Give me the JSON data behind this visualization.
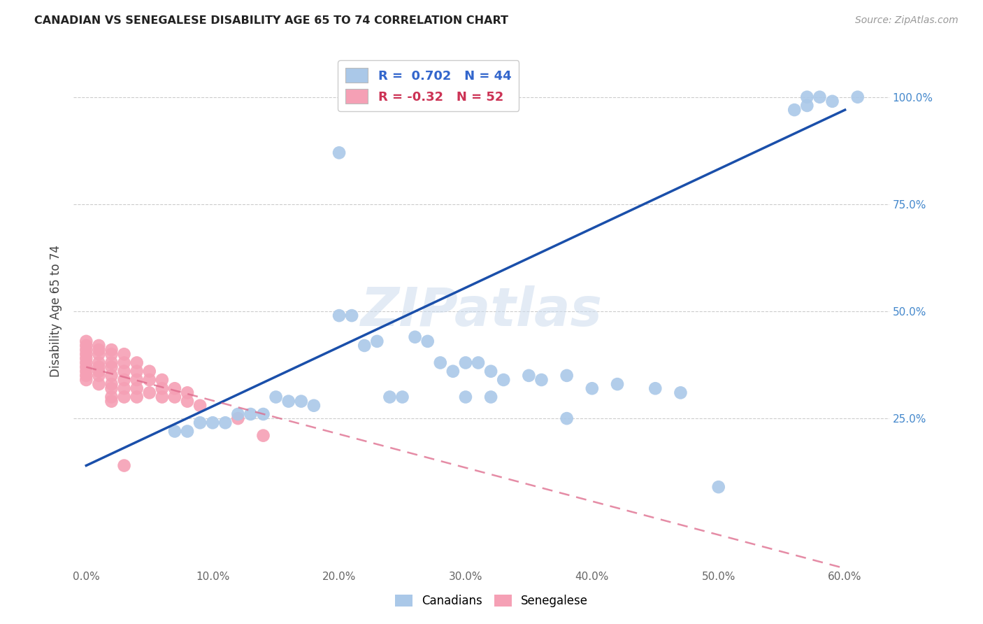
{
  "title": "CANADIAN VS SENEGALESE DISABILITY AGE 65 TO 74 CORRELATION CHART",
  "source": "Source: ZipAtlas.com",
  "ylabel": "Disability Age 65 to 74",
  "x_ticks": [
    0.0,
    0.1,
    0.2,
    0.3,
    0.4,
    0.5,
    0.6
  ],
  "x_tick_labels": [
    "0.0%",
    "10.0%",
    "20.0%",
    "30.0%",
    "40.0%",
    "50.0%",
    "60.0%"
  ],
  "y_ticks": [
    0.0,
    0.25,
    0.5,
    0.75,
    1.0
  ],
  "y_tick_labels": [
    "",
    "25.0%",
    "50.0%",
    "75.0%",
    "100.0%"
  ],
  "xlim": [
    -0.01,
    0.635
  ],
  "ylim": [
    -0.1,
    1.1
  ],
  "legend_labels": [
    "Canadians",
    "Senegalese"
  ],
  "r_canadian": 0.702,
  "n_canadian": 44,
  "r_senegalese": -0.32,
  "n_senegalese": 52,
  "canadian_color": "#aac8e8",
  "senegalese_color": "#f5a0b5",
  "canadian_line_color": "#1a4faa",
  "senegalese_line_color": "#dd6688",
  "watermark": "ZIPatlas",
  "canadian_x": [
    0.57,
    0.58,
    0.59,
    0.61,
    0.56,
    0.57,
    0.2,
    0.2,
    0.21,
    0.26,
    0.27,
    0.22,
    0.23,
    0.28,
    0.29,
    0.3,
    0.31,
    0.32,
    0.33,
    0.35,
    0.36,
    0.38,
    0.4,
    0.42,
    0.45,
    0.47,
    0.3,
    0.32,
    0.24,
    0.25,
    0.15,
    0.16,
    0.17,
    0.18,
    0.12,
    0.13,
    0.14,
    0.09,
    0.1,
    0.11,
    0.07,
    0.08,
    0.38,
    0.5
  ],
  "canadian_y": [
    1.0,
    1.0,
    0.99,
    1.0,
    0.97,
    0.98,
    0.87,
    0.49,
    0.49,
    0.44,
    0.43,
    0.42,
    0.43,
    0.38,
    0.36,
    0.38,
    0.38,
    0.36,
    0.34,
    0.35,
    0.34,
    0.35,
    0.32,
    0.33,
    0.32,
    0.31,
    0.3,
    0.3,
    0.3,
    0.3,
    0.3,
    0.29,
    0.29,
    0.28,
    0.26,
    0.26,
    0.26,
    0.24,
    0.24,
    0.24,
    0.22,
    0.22,
    0.25,
    0.09
  ],
  "senegalese_x": [
    0.0,
    0.0,
    0.0,
    0.0,
    0.0,
    0.0,
    0.0,
    0.0,
    0.0,
    0.0,
    0.01,
    0.01,
    0.01,
    0.01,
    0.01,
    0.01,
    0.01,
    0.01,
    0.02,
    0.02,
    0.02,
    0.02,
    0.02,
    0.02,
    0.02,
    0.02,
    0.02,
    0.03,
    0.03,
    0.03,
    0.03,
    0.03,
    0.03,
    0.04,
    0.04,
    0.04,
    0.04,
    0.04,
    0.05,
    0.05,
    0.05,
    0.06,
    0.06,
    0.06,
    0.07,
    0.07,
    0.08,
    0.08,
    0.09,
    0.12,
    0.14,
    0.03
  ],
  "senegalese_y": [
    0.43,
    0.42,
    0.41,
    0.4,
    0.39,
    0.38,
    0.37,
    0.36,
    0.35,
    0.34,
    0.42,
    0.41,
    0.4,
    0.38,
    0.37,
    0.36,
    0.35,
    0.33,
    0.41,
    0.4,
    0.38,
    0.37,
    0.35,
    0.33,
    0.32,
    0.3,
    0.29,
    0.4,
    0.38,
    0.36,
    0.34,
    0.32,
    0.3,
    0.38,
    0.36,
    0.34,
    0.32,
    0.3,
    0.36,
    0.34,
    0.31,
    0.34,
    0.32,
    0.3,
    0.32,
    0.3,
    0.31,
    0.29,
    0.28,
    0.25,
    0.21,
    0.14
  ],
  "canadian_line_x": [
    0.0,
    0.6
  ],
  "canadian_line_y": [
    0.14,
    0.97
  ],
  "senegalese_line_x": [
    0.0,
    0.6
  ],
  "senegalese_line_y": [
    0.37,
    -0.1
  ]
}
